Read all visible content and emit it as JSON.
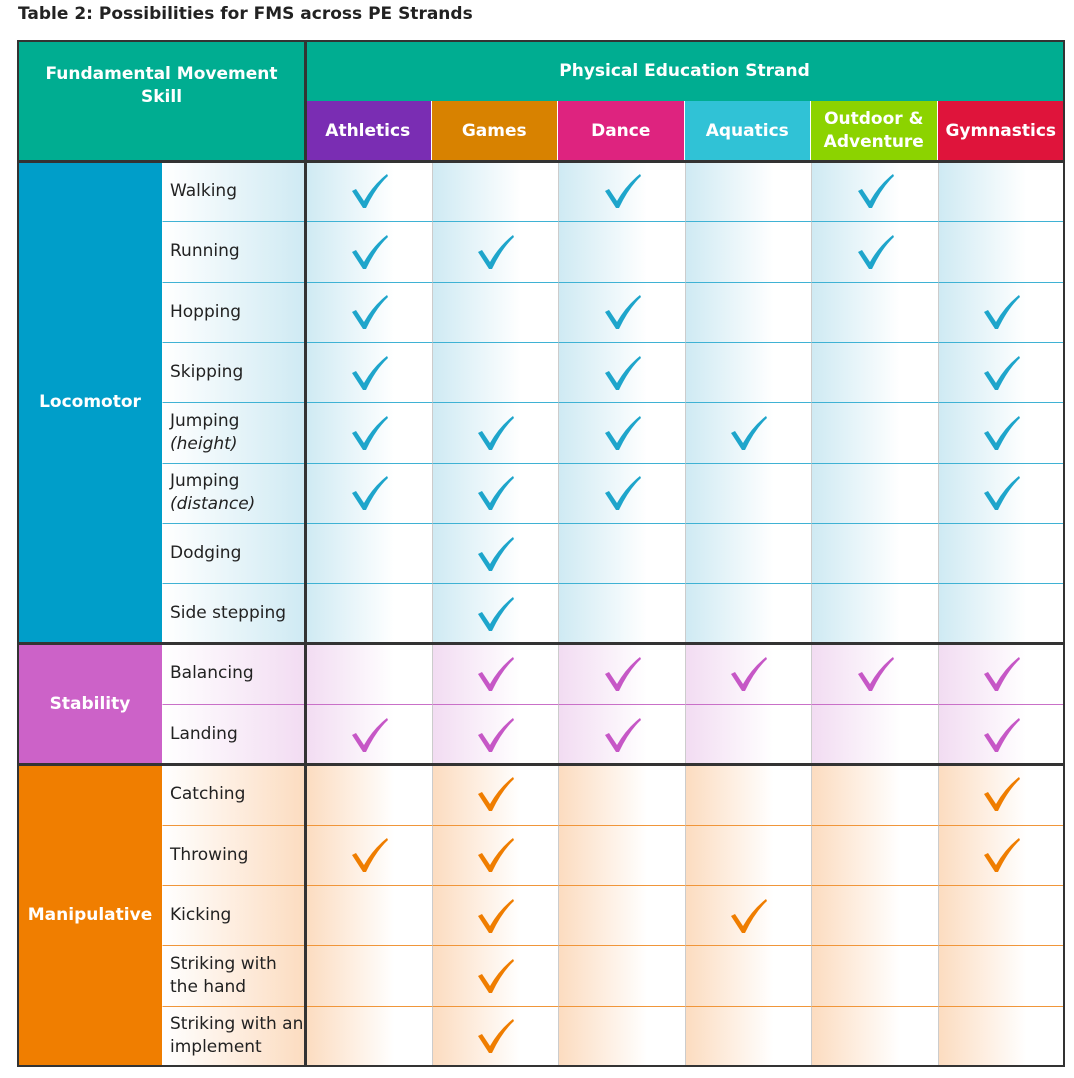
{
  "title": "Table 2: Possibilities for FMS across PE Strands",
  "header": {
    "corner": "Fundamental Movement Skill",
    "group": "Physical Education Strand",
    "color": "#00ad91",
    "strands": [
      {
        "name": "Athletics",
        "color": "#7a2db3"
      },
      {
        "name": "Games",
        "color": "#d88200"
      },
      {
        "name": "Dance",
        "color": "#de237f"
      },
      {
        "name": "Aquatics",
        "color": "#30c2d6"
      },
      {
        "name": "Outdoor & Adventure",
        "color": "#8cd300"
      },
      {
        "name": "Gymnastics",
        "color": "#df143b"
      }
    ]
  },
  "groups": [
    {
      "name": "Locomotor",
      "color": "#009ec9",
      "light": "#cfeaf3",
      "line": "#3fb2d4",
      "check": "#1ea5cb",
      "skills": [
        {
          "name": "Walking",
          "checks": [
            true,
            false,
            true,
            false,
            true,
            false
          ]
        },
        {
          "name": "Running",
          "checks": [
            true,
            true,
            false,
            false,
            true,
            false
          ]
        },
        {
          "name": "Hopping",
          "checks": [
            true,
            false,
            true,
            false,
            false,
            true
          ]
        },
        {
          "name": "Skipping",
          "checks": [
            true,
            false,
            true,
            false,
            false,
            true
          ]
        },
        {
          "name": "Jumping",
          "qualifier": "(height)",
          "checks": [
            true,
            true,
            true,
            true,
            false,
            true
          ]
        },
        {
          "name": "Jumping",
          "qualifier": "(distance)",
          "checks": [
            true,
            true,
            true,
            false,
            false,
            true
          ]
        },
        {
          "name": "Dodging",
          "checks": [
            false,
            true,
            false,
            false,
            false,
            false
          ]
        },
        {
          "name": "Side stepping",
          "checks": [
            false,
            true,
            false,
            false,
            false,
            false
          ]
        }
      ]
    },
    {
      "name": "Stability",
      "color": "#cc62c8",
      "light": "#f2dcf2",
      "line": "#c970c8",
      "check": "#c657c6",
      "skills": [
        {
          "name": "Balancing",
          "checks": [
            false,
            true,
            true,
            true,
            true,
            true
          ]
        },
        {
          "name": "Landing",
          "checks": [
            true,
            true,
            true,
            false,
            false,
            true
          ]
        }
      ]
    },
    {
      "name": "Manipulative",
      "color": "#f07e00",
      "light": "#fcdcc0",
      "line": "#f0963a",
      "check": "#ef7d00",
      "skills": [
        {
          "name": "Catching",
          "checks": [
            false,
            true,
            false,
            false,
            false,
            true
          ]
        },
        {
          "name": "Throwing",
          "checks": [
            true,
            true,
            false,
            false,
            false,
            true
          ]
        },
        {
          "name": "Kicking",
          "checks": [
            false,
            true,
            false,
            true,
            false,
            false
          ]
        },
        {
          "name": "Striking with the hand",
          "checks": [
            false,
            true,
            false,
            false,
            false,
            false
          ]
        },
        {
          "name": "Striking with an implement",
          "checks": [
            false,
            true,
            false,
            false,
            false,
            false
          ]
        }
      ]
    }
  ]
}
